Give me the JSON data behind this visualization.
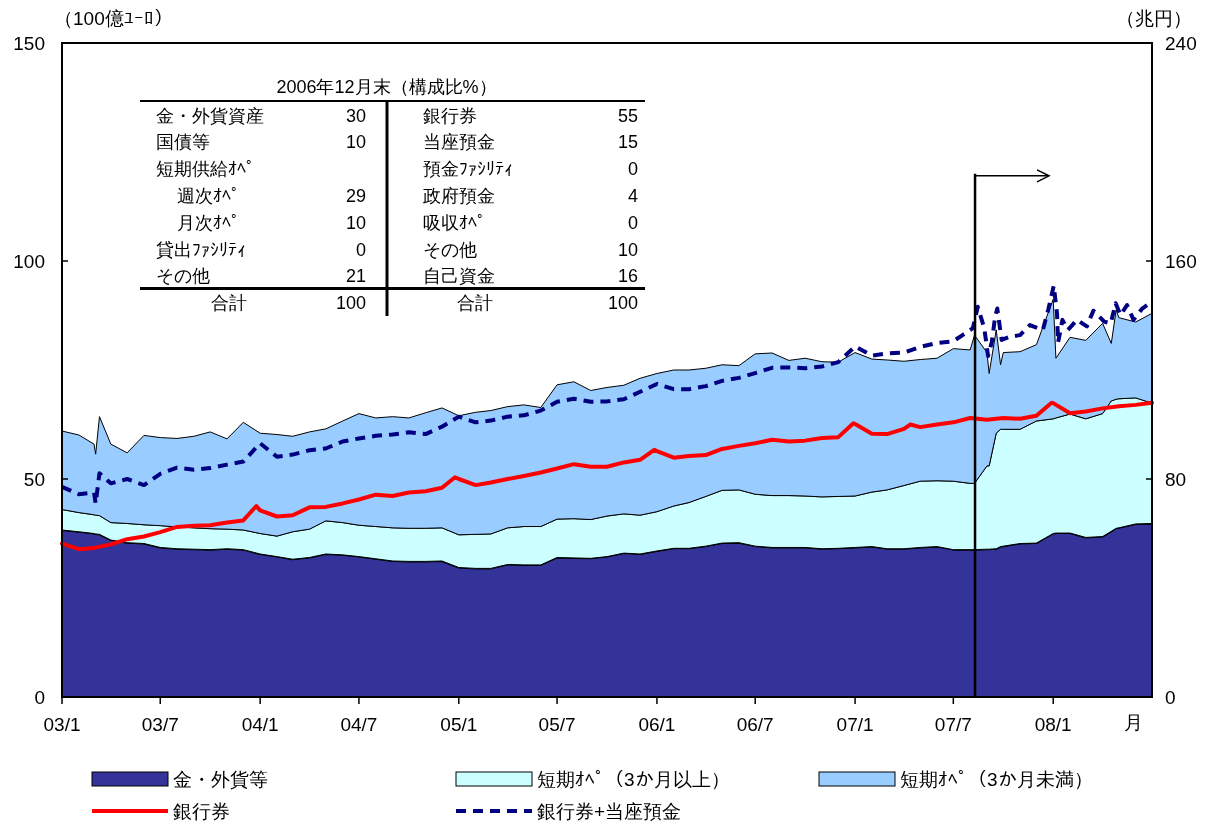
{
  "chart_data": {
    "type": "area",
    "stacked": true,
    "x": [
      "2003-01-01",
      "2003-02-01",
      "2003-03-01",
      "2003-03-04",
      "2003-03-11",
      "2003-04-01",
      "2003-05-01",
      "2003-06-01",
      "2003-07-01",
      "2003-08-01",
      "2003-09-01",
      "2003-10-01",
      "2003-11-01",
      "2003-12-01",
      "2004-01-01",
      "2004-02-01",
      "2004-03-01",
      "2004-04-01",
      "2004-05-01",
      "2004-06-01",
      "2004-07-01",
      "2004-08-01",
      "2004-09-01",
      "2004-10-01",
      "2004-11-01",
      "2004-12-01",
      "2005-01-01",
      "2005-02-01",
      "2005-03-01",
      "2005-04-01",
      "2005-05-01",
      "2005-06-01",
      "2005-07-01",
      "2005-08-01",
      "2005-09-01",
      "2005-10-01",
      "2005-11-01",
      "2005-12-01",
      "2006-01-01",
      "2006-02-01",
      "2006-03-01",
      "2006-04-01",
      "2006-05-01",
      "2006-06-01",
      "2006-07-01",
      "2006-08-01",
      "2006-09-01",
      "2006-10-01",
      "2006-11-01",
      "2006-12-01",
      "2007-01-01",
      "2007-02-01",
      "2007-03-01",
      "2007-04-01",
      "2007-05-01",
      "2007-06-01",
      "2007-07-01",
      "2007-08-01",
      "2007-08-09",
      "2007-09-01",
      "2007-09-05",
      "2007-09-18",
      "2007-09-26",
      "2007-10-01",
      "2007-11-01",
      "2007-12-01",
      "2008-01-01",
      "2008-01-06",
      "2008-02-01",
      "2008-03-01",
      "2008-04-01",
      "2008-04-17",
      "2008-04-26",
      "2008-05-01",
      "2008-06-01",
      "2008-07-01"
    ],
    "series": [
      {
        "name": "金・外貨等",
        "color": "#333399",
        "values": [
          38.3,
          37.9,
          37.5,
          37.4,
          37.3,
          36.0,
          35.4,
          35.2,
          34.3,
          34.0,
          33.9,
          33.8,
          34.0,
          33.8,
          32.8,
          32.2,
          31.6,
          32.0,
          32.8,
          32.6,
          32.2,
          31.7,
          31.2,
          31.1,
          31.1,
          31.2,
          29.7,
          29.5,
          29.5,
          30.4,
          30.3,
          30.3,
          32.0,
          31.9,
          31.8,
          32.2,
          33.0,
          32.8,
          33.5,
          34.1,
          34.1,
          34.6,
          35.3,
          35.4,
          34.6,
          34.3,
          34.3,
          34.3,
          34.0,
          34.1,
          34.3,
          34.5,
          34.0,
          34.0,
          34.3,
          34.5,
          33.8,
          33.8,
          33.8,
          33.9,
          33.9,
          34.0,
          34.5,
          34.6,
          35.2,
          35.3,
          37.5,
          37.6,
          37.6,
          36.6,
          36.8,
          38.0,
          38.7,
          38.8,
          39.7,
          39.8
        ]
      },
      {
        "name": "短期ｵﾍﾟ（3か月以上）",
        "color": "#ccffff",
        "values": [
          4.7,
          4.4,
          4.3,
          4.3,
          4.3,
          4.0,
          4.4,
          4.3,
          5.0,
          5.0,
          4.9,
          4.8,
          4.5,
          4.5,
          4.7,
          4.7,
          6.3,
          6.5,
          7.6,
          7.4,
          7.2,
          7.4,
          7.6,
          7.6,
          7.6,
          7.6,
          7.5,
          7.8,
          7.9,
          8.4,
          8.8,
          8.8,
          8.8,
          9.0,
          8.9,
          9.3,
          9.0,
          8.9,
          9.0,
          9.7,
          10.5,
          11.4,
          12.1,
          12.1,
          11.9,
          11.9,
          11.9,
          11.8,
          11.9,
          11.9,
          11.8,
          12.5,
          13.5,
          14.5,
          15.2,
          15.1,
          15.7,
          15.2,
          15.2,
          19.1,
          19.1,
          26.5,
          26.9,
          26.8,
          26.2,
          28.0,
          26.3,
          26.4,
          27.3,
          27.2,
          28.2,
          29.9,
          29.6,
          29.6,
          28.9,
          27.6
        ]
      },
      {
        "name": "短期ｵﾍﾟ（3か月未満）",
        "color": "#99ccff",
        "values": [
          18.0,
          17.8,
          16.2,
          14.0,
          22.7,
          18.0,
          16.2,
          20.5,
          20.2,
          20.3,
          21.0,
          22.2,
          20.7,
          24.7,
          23.0,
          23.3,
          21.9,
          22.3,
          21.1,
          23.3,
          25.6,
          24.9,
          25.5,
          25.3,
          26.5,
          27.5,
          27.3,
          28.0,
          28.3,
          27.8,
          27.9,
          27.3,
          30.8,
          31.4,
          29.6,
          29.5,
          29.5,
          31.4,
          31.7,
          31.2,
          30.4,
          29.4,
          28.8,
          28.5,
          32.2,
          32.7,
          31.0,
          31.6,
          31.0,
          30.8,
          32.9,
          30.5,
          29.8,
          28.5,
          27.9,
          28.1,
          30.4,
          30.6,
          34.0,
          26.0,
          21.2,
          23.7,
          14.8,
          17.6,
          17.8,
          17.5,
          27.4,
          13.7,
          17.6,
          18.0,
          20.7,
          13.2,
          20.5,
          18.6,
          17.4,
          20.6
        ]
      },
      {
        "type": "line",
        "name": "銀行券",
        "color": "#ff0000",
        "line_style": "solid",
        "x": [
          "2003-01-01",
          "2003-02-01",
          "2003-03-01",
          "2003-04-01",
          "2003-05-01",
          "2003-06-01",
          "2003-07-01",
          "2003-08-01",
          "2003-09-01",
          "2003-10-01",
          "2003-11-01",
          "2003-12-01",
          "2003-12-25",
          "2004-01-01",
          "2004-02-01",
          "2004-03-01",
          "2004-04-01",
          "2004-05-01",
          "2004-06-01",
          "2004-07-01",
          "2004-08-01",
          "2004-09-01",
          "2004-10-01",
          "2004-11-01",
          "2004-12-01",
          "2004-12-25",
          "2005-01-01",
          "2005-02-01",
          "2005-03-01",
          "2005-04-01",
          "2005-05-01",
          "2005-06-01",
          "2005-07-01",
          "2005-08-01",
          "2005-09-01",
          "2005-10-01",
          "2005-11-01",
          "2005-12-01",
          "2005-12-27",
          "2006-01-01",
          "2006-02-01",
          "2006-03-01",
          "2006-04-01",
          "2006-05-01",
          "2006-06-01",
          "2006-07-01",
          "2006-08-01",
          "2006-09-01",
          "2006-10-01",
          "2006-11-01",
          "2006-12-01",
          "2006-12-29",
          "2007-01-01",
          "2007-02-01",
          "2007-03-01",
          "2007-04-01",
          "2007-04-13",
          "2007-05-01",
          "2007-06-01",
          "2007-07-01",
          "2007-08-01",
          "2007-09-01",
          "2007-10-01",
          "2007-11-01",
          "2007-12-01",
          "2007-12-29",
          "2008-01-01",
          "2008-02-01",
          "2008-03-01",
          "2008-04-01",
          "2008-05-01",
          "2008-06-01",
          "2008-07-01"
        ],
        "values": [
          35.2,
          33.9,
          34.2,
          35.0,
          36.2,
          36.8,
          37.8,
          39.0,
          39.3,
          39.4,
          40.0,
          40.5,
          43.8,
          42.8,
          41.4,
          41.7,
          43.5,
          43.6,
          44.4,
          45.3,
          46.4,
          46.1,
          46.9,
          47.2,
          48.0,
          50.4,
          50.0,
          48.6,
          49.2,
          50.0,
          50.7,
          51.5,
          52.4,
          53.4,
          52.8,
          52.8,
          53.8,
          54.4,
          56.7,
          56.4,
          54.9,
          55.3,
          55.5,
          56.9,
          57.6,
          58.2,
          59.0,
          58.6,
          58.8,
          59.4,
          59.6,
          62.8,
          62.6,
          60.4,
          60.3,
          61.5,
          62.5,
          61.9,
          62.5,
          63.0,
          64.0,
          63.6,
          64.0,
          63.8,
          64.5,
          67.5,
          67.4,
          65.1,
          65.5,
          66.2,
          66.7,
          67.0,
          67.5
        ]
      },
      {
        "type": "line",
        "name": "銀行券+当座預金",
        "color": "#000080",
        "line_style": "dashed",
        "x": [
          "2003-01-01",
          "2003-02-01",
          "2003-03-01",
          "2003-03-04",
          "2003-03-11",
          "2003-04-01",
          "2003-05-01",
          "2003-06-01",
          "2003-07-01",
          "2003-08-01",
          "2003-09-01",
          "2003-10-01",
          "2003-11-01",
          "2003-12-01",
          "2004-01-01",
          "2004-02-01",
          "2004-03-01",
          "2004-04-01",
          "2004-05-01",
          "2004-06-01",
          "2004-07-01",
          "2004-08-01",
          "2004-09-01",
          "2004-10-01",
          "2004-11-01",
          "2004-12-01",
          "2005-01-01",
          "2005-02-01",
          "2005-03-01",
          "2005-04-01",
          "2005-05-01",
          "2005-06-01",
          "2005-07-01",
          "2005-08-01",
          "2005-09-01",
          "2005-10-01",
          "2005-11-01",
          "2005-12-01",
          "2006-01-01",
          "2006-02-01",
          "2006-03-01",
          "2006-04-01",
          "2006-05-01",
          "2006-06-01",
          "2006-07-01",
          "2006-08-01",
          "2006-09-01",
          "2006-10-01",
          "2006-11-01",
          "2006-12-01",
          "2007-01-01",
          "2007-02-01",
          "2007-03-01",
          "2007-04-01",
          "2007-05-01",
          "2007-06-01",
          "2007-07-01",
          "2007-07-18",
          "2007-08-06",
          "2007-08-15",
          "2007-08-27",
          "2007-09-03",
          "2007-09-10",
          "2007-09-16",
          "2007-09-20",
          "2007-09-28",
          "2007-10-13",
          "2007-11-01",
          "2007-11-19",
          "2007-12-04",
          "2007-12-13",
          "2007-12-23",
          "2008-01-02",
          "2008-01-08",
          "2008-01-10",
          "2008-01-18",
          "2008-01-28",
          "2008-02-14",
          "2008-03-03",
          "2008-03-15",
          "2008-04-04",
          "2008-04-16",
          "2008-04-25",
          "2008-05-04",
          "2008-05-16",
          "2008-05-28",
          "2008-06-13",
          "2008-06-28"
        ],
        "values": [
          48.2,
          46.5,
          46.9,
          44.4,
          51.3,
          49.0,
          50.0,
          48.6,
          51.2,
          52.6,
          52.1,
          52.5,
          53.3,
          54.0,
          58.2,
          55.1,
          55.6,
          56.6,
          57.0,
          58.6,
          59.3,
          59.9,
          60.2,
          60.7,
          60.3,
          62.0,
          64.3,
          63.0,
          63.4,
          64.3,
          64.6,
          65.7,
          67.7,
          68.4,
          67.7,
          67.8,
          68.3,
          70.0,
          71.8,
          70.6,
          70.6,
          71.3,
          72.5,
          73.2,
          74.3,
          75.5,
          75.6,
          75.4,
          75.8,
          76.8,
          80.4,
          78.3,
          78.8,
          79.0,
          80.3,
          81.2,
          81.6,
          83.0,
          84.6,
          89.5,
          84.6,
          78.2,
          81.5,
          87.2,
          89.1,
          81.9,
          82.6,
          83.0,
          85.3,
          84.6,
          84.2,
          88.9,
          94.3,
          88.0,
          81.3,
          86.5,
          84.2,
          86.5,
          85.0,
          88.6,
          86.1,
          85.7,
          90.3,
          87.6,
          89.9,
          86.5,
          89.1,
          90.4
        ]
      }
    ],
    "xlim": [
      "2003-01-01",
      "2008-07-01"
    ],
    "xticks": [
      {
        "value": "2003-01-01",
        "label": "03/1"
      },
      {
        "value": "2003-07-01",
        "label": "03/7"
      },
      {
        "value": "2004-01-01",
        "label": "04/1"
      },
      {
        "value": "2004-07-01",
        "label": "04/7"
      },
      {
        "value": "2005-01-01",
        "label": "05/1"
      },
      {
        "value": "2005-07-01",
        "label": "05/7"
      },
      {
        "value": "2006-01-01",
        "label": "06/1"
      },
      {
        "value": "2006-07-01",
        "label": "06/7"
      },
      {
        "value": "2007-01-01",
        "label": "07/1"
      },
      {
        "value": "2007-07-01",
        "label": "07/7"
      },
      {
        "value": "2008-01-01",
        "label": "08/1"
      }
    ],
    "ylim": [
      0,
      150
    ],
    "yticks": [
      0,
      50,
      100,
      150
    ],
    "y2lim": [
      0,
      240
    ],
    "y2ticks": [
      0,
      80,
      160,
      240
    ],
    "xlabel": "月",
    "ylabel": "（100億ﾕｰﾛ）",
    "y2label": "（兆円）",
    "ref_lines": [
      {
        "axis": "x",
        "value": "2007-08-10"
      }
    ],
    "legend": "bottom",
    "annotations": [
      "2006年12月末（構成比%）",
      "金・外貨資産",
      "30",
      "銀行券",
      "55",
      "国債等",
      "10",
      "当座預金",
      "15",
      "短期供給ｵﾍﾟ",
      "預金ﾌｧｼﾘﾃｨ",
      "0",
      "週次ｵﾍﾟ",
      "29",
      "政府預金",
      "4",
      "月次ｵﾍﾟ",
      "10",
      "吸収ｵﾍﾟ",
      "0",
      "貸出ﾌｧｼﾘﾃｨ",
      "0",
      "その他",
      "10",
      "その他",
      "21",
      "自己資金",
      "16",
      "合計",
      "100",
      "合計",
      "100"
    ]
  }
}
